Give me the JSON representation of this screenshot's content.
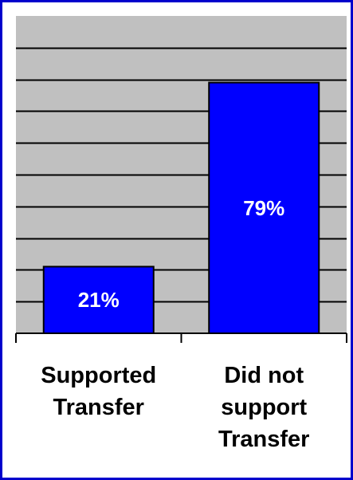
{
  "chart_data": {
    "type": "bar",
    "categories": [
      [
        "Supported",
        "Transfer"
      ],
      [
        "Did not",
        "support",
        "Transfer"
      ]
    ],
    "values": [
      21,
      79
    ],
    "value_labels": [
      "21%",
      "79%"
    ],
    "ylim": [
      0,
      100
    ],
    "grid": true,
    "legend": "none",
    "colors": {
      "bar": "#0000ff",
      "plot_background": "#c0c0c0",
      "gridline": "#000000",
      "frame": "#0000cc",
      "label_text": "#ffffff"
    }
  }
}
